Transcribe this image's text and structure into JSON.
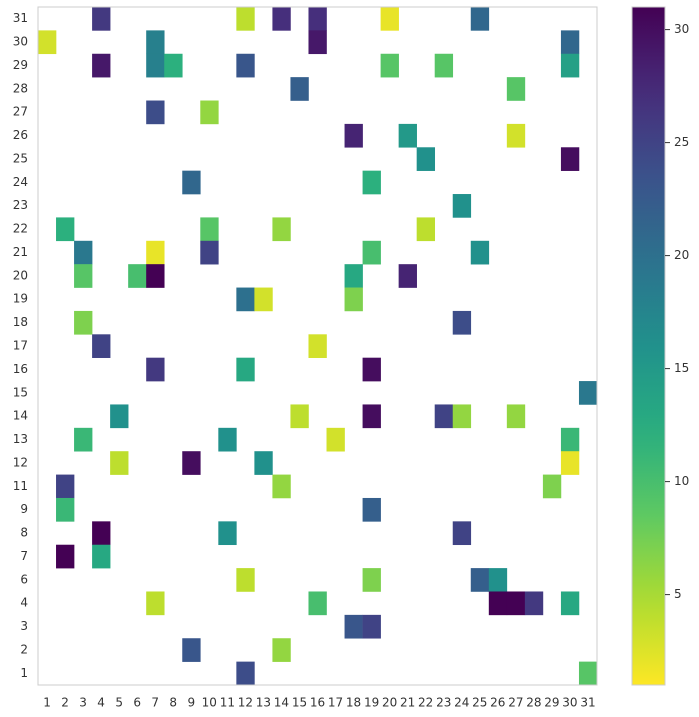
{
  "chart_data": {
    "type": "heatmap",
    "colormap": "viridis_r",
    "x": [
      1,
      2,
      3,
      4,
      5,
      6,
      7,
      8,
      9,
      10,
      11,
      12,
      13,
      14,
      15,
      16,
      17,
      18,
      19,
      20,
      21,
      22,
      23,
      24,
      25,
      26,
      27,
      28,
      29,
      30,
      31
    ],
    "y": [
      31,
      30,
      29,
      28,
      27,
      26,
      25,
      24,
      23,
      22,
      21,
      20,
      19,
      18,
      17,
      16,
      15,
      14,
      13,
      12,
      11,
      9,
      8,
      7,
      6,
      4,
      3,
      2,
      1
    ],
    "values": [
      [
        null,
        null,
        null,
        26,
        null,
        null,
        null,
        null,
        null,
        null,
        null,
        4,
        null,
        27,
        null,
        27,
        null,
        null,
        null,
        2,
        null,
        null,
        null,
        null,
        21,
        null,
        null,
        null,
        null,
        null,
        null
      ],
      [
        3,
        null,
        null,
        null,
        null,
        null,
        18,
        null,
        null,
        null,
        null,
        null,
        null,
        null,
        null,
        29,
        null,
        null,
        null,
        null,
        null,
        null,
        null,
        null,
        null,
        null,
        null,
        null,
        null,
        21,
        null
      ],
      [
        null,
        null,
        null,
        29,
        null,
        null,
        18,
        12,
        null,
        null,
        null,
        23,
        null,
        null,
        null,
        null,
        null,
        null,
        null,
        9,
        null,
        null,
        9,
        null,
        null,
        null,
        null,
        null,
        null,
        14,
        null
      ],
      [
        null,
        null,
        null,
        null,
        null,
        null,
        null,
        null,
        null,
        null,
        null,
        null,
        null,
        null,
        22,
        null,
        null,
        null,
        null,
        null,
        null,
        null,
        null,
        null,
        null,
        null,
        9,
        null,
        null,
        null,
        null
      ],
      [
        null,
        null,
        null,
        null,
        null,
        null,
        24,
        null,
        null,
        6,
        null,
        null,
        null,
        null,
        null,
        null,
        null,
        null,
        null,
        null,
        null,
        null,
        null,
        null,
        null,
        null,
        null,
        null,
        null,
        null,
        null
      ],
      [
        null,
        null,
        null,
        null,
        null,
        null,
        null,
        null,
        null,
        null,
        null,
        null,
        null,
        null,
        null,
        null,
        null,
        28,
        null,
        null,
        15,
        null,
        null,
        null,
        null,
        null,
        3,
        null,
        null,
        null,
        null
      ],
      [
        null,
        null,
        null,
        null,
        null,
        null,
        null,
        null,
        null,
        null,
        null,
        null,
        null,
        null,
        null,
        null,
        null,
        null,
        null,
        null,
        null,
        16,
        null,
        null,
        null,
        null,
        null,
        null,
        null,
        30,
        null
      ],
      [
        null,
        null,
        null,
        null,
        null,
        null,
        null,
        null,
        21,
        null,
        null,
        null,
        null,
        null,
        null,
        null,
        null,
        null,
        12,
        null,
        null,
        null,
        null,
        null,
        null,
        null,
        null,
        null,
        null,
        null,
        null
      ],
      [
        null,
        null,
        null,
        null,
        null,
        null,
        null,
        null,
        null,
        null,
        null,
        null,
        null,
        null,
        null,
        null,
        null,
        null,
        null,
        null,
        null,
        null,
        null,
        16,
        null,
        null,
        null,
        null,
        null,
        null,
        null
      ],
      [
        null,
        12,
        null,
        null,
        null,
        null,
        null,
        null,
        null,
        9,
        null,
        null,
        null,
        6,
        null,
        null,
        null,
        null,
        null,
        null,
        null,
        4,
        null,
        null,
        null,
        null,
        null,
        null,
        null,
        null,
        null
      ],
      [
        null,
        null,
        19,
        null,
        null,
        null,
        2,
        null,
        null,
        25,
        null,
        null,
        null,
        null,
        null,
        null,
        null,
        null,
        10,
        null,
        null,
        null,
        null,
        null,
        16,
        null,
        null,
        null,
        null,
        null,
        null
      ],
      [
        null,
        null,
        9,
        null,
        null,
        10,
        31,
        null,
        null,
        null,
        null,
        null,
        null,
        null,
        null,
        null,
        null,
        13,
        null,
        null,
        28,
        null,
        null,
        null,
        null,
        null,
        null,
        null,
        null,
        null,
        null
      ],
      [
        null,
        null,
        null,
        null,
        null,
        null,
        null,
        null,
        null,
        null,
        null,
        20,
        3,
        null,
        null,
        null,
        null,
        7,
        null,
        null,
        null,
        null,
        null,
        null,
        null,
        null,
        null,
        null,
        null,
        null,
        null
      ],
      [
        null,
        null,
        7,
        null,
        null,
        null,
        null,
        null,
        null,
        null,
        null,
        null,
        null,
        null,
        null,
        null,
        null,
        null,
        null,
        null,
        null,
        null,
        null,
        24,
        null,
        null,
        null,
        null,
        null,
        null,
        null
      ],
      [
        null,
        null,
        null,
        25,
        null,
        null,
        null,
        null,
        null,
        null,
        null,
        null,
        null,
        null,
        null,
        3,
        null,
        null,
        null,
        null,
        null,
        null,
        null,
        null,
        null,
        null,
        null,
        null,
        null,
        null,
        null
      ],
      [
        null,
        null,
        null,
        null,
        null,
        null,
        26,
        null,
        null,
        null,
        null,
        13,
        null,
        null,
        null,
        null,
        null,
        null,
        30,
        null,
        null,
        null,
        null,
        null,
        null,
        null,
        null,
        null,
        null,
        null,
        null
      ],
      [
        null,
        null,
        null,
        null,
        null,
        null,
        null,
        null,
        null,
        null,
        null,
        null,
        null,
        null,
        null,
        null,
        null,
        null,
        null,
        null,
        null,
        null,
        null,
        null,
        null,
        null,
        null,
        null,
        null,
        null,
        19
      ],
      [
        null,
        null,
        null,
        null,
        16,
        null,
        null,
        null,
        null,
        null,
        null,
        null,
        null,
        null,
        4,
        null,
        null,
        null,
        30,
        null,
        null,
        null,
        25,
        6,
        null,
        null,
        6,
        null,
        null,
        null,
        null
      ],
      [
        null,
        null,
        11,
        null,
        null,
        null,
        null,
        null,
        null,
        null,
        16,
        null,
        null,
        null,
        null,
        null,
        3,
        null,
        null,
        null,
        null,
        null,
        null,
        null,
        null,
        null,
        null,
        null,
        null,
        11,
        null
      ],
      [
        null,
        null,
        null,
        null,
        4,
        null,
        null,
        null,
        30,
        null,
        null,
        null,
        16,
        null,
        null,
        null,
        null,
        null,
        null,
        null,
        null,
        null,
        null,
        null,
        null,
        null,
        null,
        null,
        null,
        2,
        null
      ],
      [
        null,
        25,
        null,
        null,
        null,
        null,
        null,
        null,
        null,
        null,
        null,
        null,
        null,
        6,
        null,
        null,
        null,
        null,
        null,
        null,
        null,
        null,
        null,
        null,
        null,
        null,
        null,
        null,
        7,
        null,
        null
      ],
      [
        null,
        11,
        null,
        null,
        null,
        null,
        null,
        null,
        null,
        null,
        null,
        null,
        null,
        null,
        null,
        null,
        null,
        null,
        22,
        null,
        null,
        null,
        null,
        null,
        null,
        null,
        null,
        null,
        null,
        null,
        null
      ],
      [
        null,
        null,
        null,
        31,
        null,
        null,
        null,
        null,
        null,
        null,
        16,
        null,
        null,
        null,
        null,
        null,
        null,
        null,
        null,
        null,
        null,
        null,
        null,
        25,
        null,
        null,
        null,
        null,
        null,
        null,
        null
      ],
      [
        null,
        31,
        null,
        13,
        null,
        null,
        null,
        null,
        null,
        null,
        null,
        null,
        null,
        null,
        null,
        null,
        null,
        null,
        null,
        null,
        null,
        null,
        null,
        null,
        null,
        null,
        null,
        null,
        null,
        null,
        null
      ],
      [
        null,
        null,
        null,
        null,
        null,
        null,
        null,
        null,
        null,
        null,
        null,
        4,
        null,
        null,
        null,
        null,
        null,
        null,
        7,
        null,
        null,
        null,
        null,
        null,
        22,
        16,
        null,
        null,
        null,
        null,
        null
      ],
      [
        null,
        null,
        null,
        null,
        null,
        null,
        4,
        null,
        null,
        null,
        null,
        null,
        null,
        null,
        null,
        10,
        null,
        null,
        null,
        null,
        null,
        null,
        null,
        null,
        null,
        31,
        31,
        26,
        null,
        13,
        null
      ],
      [
        null,
        null,
        null,
        null,
        null,
        null,
        null,
        null,
        null,
        null,
        null,
        null,
        null,
        null,
        null,
        null,
        null,
        23,
        25,
        null,
        null,
        null,
        null,
        null,
        null,
        null,
        null,
        null,
        null,
        null,
        null
      ],
      [
        null,
        null,
        null,
        null,
        null,
        null,
        null,
        null,
        23,
        null,
        null,
        null,
        null,
        6,
        null,
        null,
        null,
        null,
        null,
        null,
        null,
        null,
        null,
        null,
        null,
        null,
        null,
        null,
        null,
        null,
        null
      ],
      [
        null,
        null,
        null,
        null,
        null,
        null,
        null,
        null,
        null,
        null,
        null,
        24,
        null,
        null,
        null,
        null,
        null,
        null,
        null,
        null,
        null,
        null,
        null,
        null,
        null,
        null,
        null,
        null,
        null,
        null,
        9
      ]
    ],
    "clim": [
      1,
      31
    ],
    "colorbar_ticks": [
      5,
      10,
      15,
      20,
      25,
      30
    ]
  }
}
